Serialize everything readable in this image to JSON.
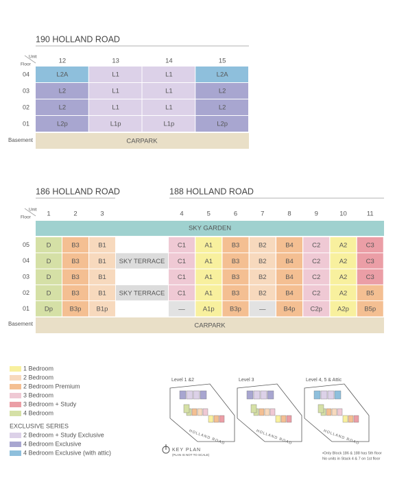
{
  "block_190": {
    "title": "190 HOLLAND ROAD",
    "unit_header": "Unit",
    "floor_header": "Floor",
    "units": [
      "12",
      "13",
      "14",
      "15"
    ],
    "rows": [
      {
        "floor": "04",
        "cells": [
          {
            "label": "L2A",
            "color": "#8ebfdc"
          },
          {
            "label": "L1",
            "color": "#dcd1e8"
          },
          {
            "label": "L1",
            "color": "#dcd1e8"
          },
          {
            "label": "L2A",
            "color": "#8ebfdc"
          }
        ]
      },
      {
        "floor": "03",
        "cells": [
          {
            "label": "L2",
            "color": "#a8a6d0"
          },
          {
            "label": "L1",
            "color": "#dcd1e8"
          },
          {
            "label": "L1",
            "color": "#dcd1e8"
          },
          {
            "label": "L2",
            "color": "#a8a6d0"
          }
        ]
      },
      {
        "floor": "02",
        "cells": [
          {
            "label": "L2",
            "color": "#a8a6d0"
          },
          {
            "label": "L1",
            "color": "#dcd1e8"
          },
          {
            "label": "L1",
            "color": "#dcd1e8"
          },
          {
            "label": "L2",
            "color": "#a8a6d0"
          }
        ]
      },
      {
        "floor": "01",
        "cells": [
          {
            "label": "L2p",
            "color": "#a8a6d0"
          },
          {
            "label": "L1p",
            "color": "#dcd1e8"
          },
          {
            "label": "L1p",
            "color": "#dcd1e8"
          },
          {
            "label": "L2p",
            "color": "#a8a6d0"
          }
        ]
      }
    ],
    "basement": {
      "floor": "Basement",
      "label": "CARPARK"
    }
  },
  "blocks_186_188": {
    "titles": [
      "186 HOLLAND ROAD",
      "188 HOLLAND ROAD"
    ],
    "unit_header": "Unit",
    "floor_header": "Floor",
    "units": [
      "1",
      "2",
      "3",
      "4",
      "5",
      "6",
      "7",
      "8",
      "9",
      "10",
      "11"
    ],
    "sky_garden": "SKY GARDEN",
    "rows": [
      {
        "floor": "05",
        "cells": [
          {
            "label": "D",
            "color": "#d5e0a6"
          },
          {
            "label": "B3",
            "color": "#f4bf92"
          },
          {
            "label": "B1",
            "color": "#f7d9bd"
          },
          {
            "label": "C1",
            "color": "#efc9d4"
          },
          {
            "label": "A1",
            "color": "#f8f09e"
          },
          {
            "label": "B3",
            "color": "#f4bf92"
          },
          {
            "label": "B2",
            "color": "#f7d9bd"
          },
          {
            "label": "B4",
            "color": "#f4bf92"
          },
          {
            "label": "C2",
            "color": "#efc9d4"
          },
          {
            "label": "A2",
            "color": "#f8f09e"
          },
          {
            "label": "C3",
            "color": "#eb9ea6"
          }
        ]
      },
      {
        "floor": "04",
        "terrace": "SKY TERRACE",
        "cells": [
          {
            "label": "D",
            "color": "#d5e0a6"
          },
          {
            "label": "B3",
            "color": "#f4bf92"
          },
          {
            "label": "B1",
            "color": "#f7d9bd"
          },
          {
            "label": "C1",
            "color": "#efc9d4"
          },
          {
            "label": "A1",
            "color": "#f8f09e"
          },
          {
            "label": "B3",
            "color": "#f4bf92"
          },
          {
            "label": "B2",
            "color": "#f7d9bd"
          },
          {
            "label": "B4",
            "color": "#f4bf92"
          },
          {
            "label": "C2",
            "color": "#efc9d4"
          },
          {
            "label": "A2",
            "color": "#f8f09e"
          },
          {
            "label": "C3",
            "color": "#eb9ea6"
          }
        ]
      },
      {
        "floor": "03",
        "cells": [
          {
            "label": "D",
            "color": "#d5e0a6"
          },
          {
            "label": "B3",
            "color": "#f4bf92"
          },
          {
            "label": "B1",
            "color": "#f7d9bd"
          },
          {
            "label": "C1",
            "color": "#efc9d4"
          },
          {
            "label": "A1",
            "color": "#f8f09e"
          },
          {
            "label": "B3",
            "color": "#f4bf92"
          },
          {
            "label": "B2",
            "color": "#f7d9bd"
          },
          {
            "label": "B4",
            "color": "#f4bf92"
          },
          {
            "label": "C2",
            "color": "#efc9d4"
          },
          {
            "label": "A2",
            "color": "#f8f09e"
          },
          {
            "label": "C3",
            "color": "#eb9ea6"
          }
        ]
      },
      {
        "floor": "02",
        "terrace": "SKY TERRACE",
        "cells": [
          {
            "label": "D",
            "color": "#d5e0a6"
          },
          {
            "label": "B3",
            "color": "#f4bf92"
          },
          {
            "label": "B1",
            "color": "#f7d9bd"
          },
          {
            "label": "C1",
            "color": "#efc9d4"
          },
          {
            "label": "A1",
            "color": "#f8f09e"
          },
          {
            "label": "B3",
            "color": "#f4bf92"
          },
          {
            "label": "B2",
            "color": "#f7d9bd"
          },
          {
            "label": "B4",
            "color": "#f4bf92"
          },
          {
            "label": "C2",
            "color": "#efc9d4"
          },
          {
            "label": "A2",
            "color": "#f8f09e"
          },
          {
            "label": "B5",
            "color": "#f4bf92"
          }
        ]
      },
      {
        "floor": "01",
        "cells": [
          {
            "label": "Dp",
            "color": "#d5e0a6"
          },
          {
            "label": "B3p",
            "color": "#f4bf92"
          },
          {
            "label": "B1p",
            "color": "#f7d9bd"
          },
          {
            "label": "—",
            "color": "#e2e2e2"
          },
          {
            "label": "A1p",
            "color": "#f8f09e"
          },
          {
            "label": "B3p",
            "color": "#f4bf92"
          },
          {
            "label": "—",
            "color": "#e2e2e2"
          },
          {
            "label": "B4p",
            "color": "#f4bf92"
          },
          {
            "label": "C2p",
            "color": "#efc9d4"
          },
          {
            "label": "A2p",
            "color": "#f8f09e"
          },
          {
            "label": "B5p",
            "color": "#f4bf92"
          }
        ]
      }
    ],
    "basement": {
      "floor": "Basement",
      "label": "CARPARK"
    }
  },
  "legend": {
    "items": [
      {
        "label": "1 Bedroom",
        "color": "#f8f09e"
      },
      {
        "label": "2 Bedroom",
        "color": "#f7d9bd"
      },
      {
        "label": "2 Bedroom Premium",
        "color": "#f4bf92"
      },
      {
        "label": "3 Bedroom",
        "color": "#efc9d4"
      },
      {
        "label": "3 Bedroom + Study",
        "color": "#eb9ea6"
      },
      {
        "label": "4 Bedroom",
        "color": "#d5e0a6"
      }
    ],
    "exclusive_title": "EXCLUSIVE SERIES",
    "exclusive_items": [
      {
        "label": "2 Bedroom + Study Exclusive",
        "color": "#dcd1e8"
      },
      {
        "label": "4 Bedroom Exclusive",
        "color": "#a8a6d0"
      },
      {
        "label": "4 Bedroom Exclusive (with attic)",
        "color": "#8ebfdc"
      }
    ]
  },
  "key_plan": {
    "levels": [
      "Level 1 &2",
      "Level 3",
      "Level 4, 5 & Attic"
    ],
    "road": "HOLLAND ROAD",
    "title": "KEY PLAN",
    "note": "(PLAN IS NOT TO SCALE)",
    "footnotes": [
      "•Only Block 186 & 188 has 5th floor",
      "No units in Stack 4 & 7 on 1st floor"
    ]
  }
}
